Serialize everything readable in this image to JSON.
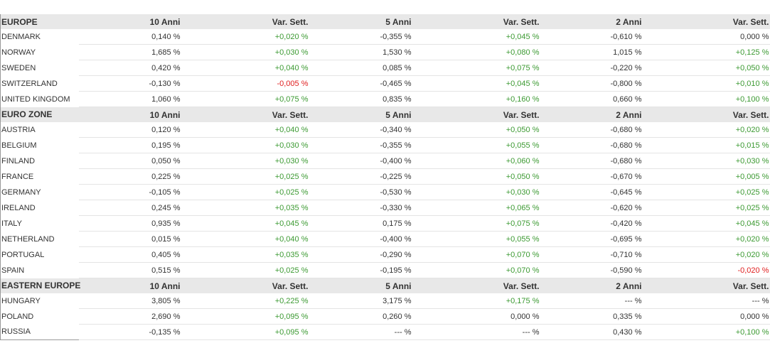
{
  "sections": [
    {
      "title": "EUROPE",
      "headers": [
        "10 Anni",
        "Var. Sett.",
        "5 Anni",
        "Var. Sett.",
        "2 Anni",
        "Var. Sett."
      ],
      "rows": [
        {
          "name": "DENMARK",
          "cells": [
            "0,140 %",
            "+0,020 %",
            "-0,355 %",
            "+0,045 %",
            "-0,610 %",
            "0,000 %"
          ]
        },
        {
          "name": "NORWAY",
          "cells": [
            "1,685 %",
            "+0,030 %",
            "1,530 %",
            "+0,080 %",
            "1,015 %",
            "+0,125 %"
          ]
        },
        {
          "name": "SWEDEN",
          "cells": [
            "0,420 %",
            "+0,040 %",
            "0,085 %",
            "+0,075 %",
            "-0,220 %",
            "+0,050 %"
          ]
        },
        {
          "name": "SWITZERLAND",
          "cells": [
            "-0,130 %",
            "-0,005 %",
            "-0,465 %",
            "+0,045 %",
            "-0,800 %",
            "+0,010 %"
          ]
        },
        {
          "name": "UNITED KINGDOM",
          "cells": [
            "1,060 %",
            "+0,075 %",
            "0,835 %",
            "+0,160 %",
            "0,660 %",
            "+0,100 %"
          ]
        }
      ]
    },
    {
      "title": "EURO ZONE",
      "headers": [
        "10 Anni",
        "Var. Sett.",
        "5 Anni",
        "Var. Sett.",
        "2 Anni",
        "Var. Sett."
      ],
      "rows": [
        {
          "name": "AUSTRIA",
          "cells": [
            "0,120 %",
            "+0,040 %",
            "-0,340 %",
            "+0,050 %",
            "-0,680 %",
            "+0,020 %"
          ]
        },
        {
          "name": "BELGIUM",
          "cells": [
            "0,195 %",
            "+0,030 %",
            "-0,355 %",
            "+0,055 %",
            "-0,680 %",
            "+0,015 %"
          ]
        },
        {
          "name": "FINLAND",
          "cells": [
            "0,050 %",
            "+0,030 %",
            "-0,400 %",
            "+0,060 %",
            "-0,680 %",
            "+0,030 %"
          ]
        },
        {
          "name": "FRANCE",
          "cells": [
            "0,225 %",
            "+0,025 %",
            "-0,225 %",
            "+0,050 %",
            "-0,670 %",
            "+0,005 %"
          ]
        },
        {
          "name": "GERMANY",
          "cells": [
            "-0,105 %",
            "+0,025 %",
            "-0,530 %",
            "+0,030 %",
            "-0,645 %",
            "+0,025 %"
          ]
        },
        {
          "name": "IRELAND",
          "cells": [
            "0,245 %",
            "+0,035 %",
            "-0,330 %",
            "+0,065 %",
            "-0,620 %",
            "+0,025 %"
          ]
        },
        {
          "name": "ITALY",
          "cells": [
            "0,935 %",
            "+0,045 %",
            "0,175 %",
            "+0,075 %",
            "-0,420 %",
            "+0,045 %"
          ]
        },
        {
          "name": "NETHERLAND",
          "cells": [
            "0,015 %",
            "+0,040 %",
            "-0,400 %",
            "+0,055 %",
            "-0,695 %",
            "+0,020 %"
          ]
        },
        {
          "name": "PORTUGAL",
          "cells": [
            "0,405 %",
            "+0,035 %",
            "-0,290 %",
            "+0,070 %",
            "-0,710 %",
            "+0,020 %"
          ]
        },
        {
          "name": "SPAIN",
          "cells": [
            "0,515 %",
            "+0,025 %",
            "-0,195 %",
            "+0,070 %",
            "-0,590 %",
            "-0,020 %"
          ]
        }
      ]
    },
    {
      "title": "EASTERN EUROPE",
      "headers": [
        "10 Anni",
        "Var. Sett.",
        "5 Anni",
        "Var. Sett.",
        "2 Anni",
        "Var. Sett."
      ],
      "rows": [
        {
          "name": "HUNGARY",
          "cells": [
            "3,805 %",
            "+0,225 %",
            "3,175 %",
            "+0,175 %",
            "--- %",
            "--- %"
          ]
        },
        {
          "name": "POLAND",
          "cells": [
            "2,690 %",
            "+0,095 %",
            "0,260 %",
            "0,000 %",
            "0,335 %",
            "0,000 %"
          ]
        },
        {
          "name": "RUSSIA",
          "cells": [
            "-0,135 %",
            "+0,095 %",
            "--- %",
            "--- %",
            "0,430 %",
            "+0,100 %"
          ]
        }
      ]
    }
  ]
}
